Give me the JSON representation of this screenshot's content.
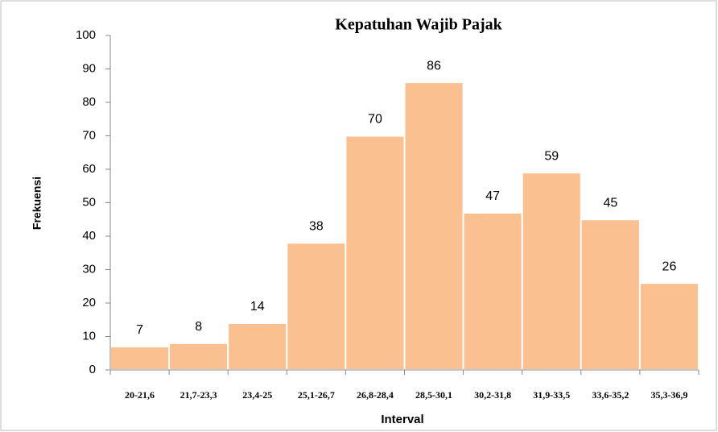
{
  "chart_data": {
    "type": "bar",
    "title": "Kepatuhan Wajib Pajak",
    "x_label": "Interval",
    "y_label": "Frekuensi",
    "categories": [
      "20-21,6",
      "21,7-23,3",
      "23,4-25",
      "25,1-26,7",
      "26,8-28,4",
      "28,5-30,1",
      "30,2-31,8",
      "31,9-33,5",
      "33,6-35,2",
      "35,3-36,9"
    ],
    "values": [
      7,
      8,
      14,
      38,
      70,
      86,
      47,
      59,
      45,
      26
    ],
    "color": "#fac090",
    "ylim": [
      0,
      100
    ],
    "yticks": [
      0,
      10,
      20,
      30,
      40,
      50,
      60,
      70,
      80,
      90,
      100
    ],
    "grid": false
  }
}
